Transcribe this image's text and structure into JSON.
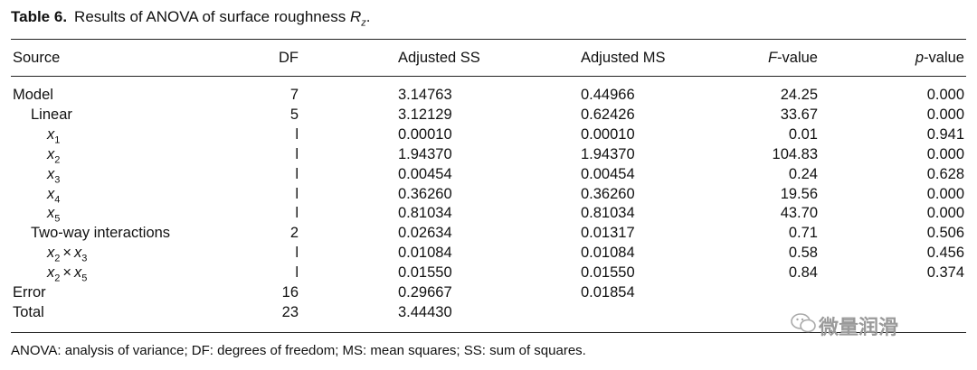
{
  "caption": {
    "label": "Table 6.",
    "text": "Results of ANOVA of surface roughness ",
    "symbol": "R",
    "symbol_sub": "z",
    "end": "."
  },
  "headers": {
    "source": "Source",
    "df": "DF",
    "adj_ss": "Adjusted SS",
    "adj_ms": "Adjusted MS",
    "f_value_italic": "F",
    "f_value_rest": "-value",
    "p_value_italic": "p",
    "p_value_rest": "-value"
  },
  "rows": [
    {
      "source": "Model",
      "df": "7",
      "ss": "3.14763",
      "ms": "0.44966",
      "f": "24.25",
      "p": "0.000"
    },
    {
      "source": "Linear",
      "df": "5",
      "ss": "3.12129",
      "ms": "0.62426",
      "f": "33.67",
      "p": "0.000"
    },
    {
      "var": "x",
      "sub": "1",
      "df": "l",
      "ss": "0.00010",
      "ms": "0.00010",
      "f": "0.01",
      "p": "0.941"
    },
    {
      "var": "x",
      "sub": "2",
      "df": "l",
      "ss": "1.94370",
      "ms": "1.94370",
      "f": "104.83",
      "p": "0.000"
    },
    {
      "var": "x",
      "sub": "3",
      "df": "l",
      "ss": "0.00454",
      "ms": "0.00454",
      "f": "0.24",
      "p": "0.628"
    },
    {
      "var": "x",
      "sub": "4",
      "df": "l",
      "ss": "0.36260",
      "ms": "0.36260",
      "f": "19.56",
      "p": "0.000"
    },
    {
      "var": "x",
      "sub": "5",
      "df": "l",
      "ss": "0.81034",
      "ms": "0.81034",
      "f": "43.70",
      "p": "0.000"
    },
    {
      "source": "Two-way interactions",
      "df": "2",
      "ss": "0.02634",
      "ms": "0.01317",
      "f": "0.71",
      "p": "0.506"
    },
    {
      "var": "x",
      "sub": "2",
      "times": "×",
      "var2": "x",
      "sub2": "3",
      "df": "l",
      "ss": "0.01084",
      "ms": "0.01084",
      "f": "0.58",
      "p": "0.456"
    },
    {
      "var": "x",
      "sub": "2",
      "times": "×",
      "var2": "x",
      "sub2": "5",
      "df": "l",
      "ss": "0.01550",
      "ms": "0.01550",
      "f": "0.84",
      "p": "0.374"
    },
    {
      "source": "Error",
      "df": "16",
      "ss": "0.29667",
      "ms": "0.01854",
      "f": "",
      "p": ""
    },
    {
      "source": "Total",
      "df": "23",
      "ss": "3.44430",
      "ms": "",
      "f": "",
      "p": ""
    }
  ],
  "footnote": "ANOVA: analysis of variance; DF: degrees of freedom; MS: mean squares; SS: sum of squares.",
  "watermark": "微量润滑"
}
